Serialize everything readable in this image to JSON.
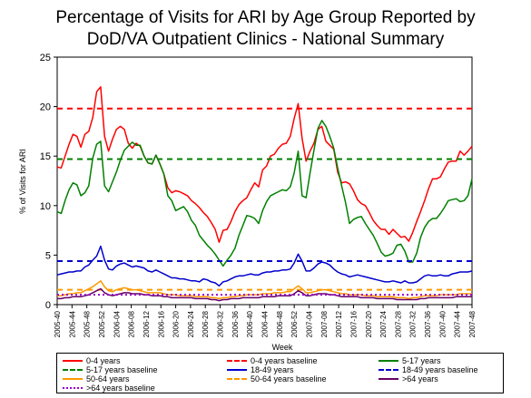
{
  "chart_data": {
    "type": "line",
    "title": "Percentage of Visits for ARI by Age Group Reported by DoD/VA Outpatient Clinics - National Summary",
    "title_lines": [
      "Percentage of Visits for ARI by Age Group Reported by",
      "DoD/VA Outpatient Clinics - National Summary"
    ],
    "xlabel": "Week",
    "ylabel": "% of Visits for ARI",
    "ylim": [
      0,
      25
    ],
    "yticks": [
      0,
      5,
      10,
      15,
      20,
      25
    ],
    "grid": false,
    "legend_position": "bottom",
    "x_tick_labels": [
      "2005-40",
      "2005-44",
      "2005-48",
      "2005-52",
      "2006-04",
      "2006-08",
      "2006-12",
      "2006-16",
      "2006-20",
      "2006-24",
      "2006-28",
      "2006-32",
      "2006-36",
      "2006-40",
      "2006-44",
      "2006-48",
      "2006-52",
      "2007-04",
      "2007-08",
      "2007-12",
      "2007-16",
      "2007-20",
      "2007-24",
      "2007-28",
      "2007-32",
      "2007-36",
      "2007-40",
      "2007-44",
      "2007-48"
    ],
    "series": [
      {
        "name": "0-4 years",
        "color": "#ff0000",
        "style": "solid",
        "values": [
          13.9,
          13.8,
          15.0,
          16.2,
          17.2,
          17.0,
          15.9,
          17.2,
          17.5,
          18.9,
          21.5,
          22.0,
          17.0,
          15.5,
          16.7,
          17.7,
          18.0,
          17.7,
          16.3,
          15.8,
          16.3,
          16.0,
          15.0,
          14.3,
          14.2,
          15.1,
          14.2,
          13.2,
          11.8,
          11.3,
          11.5,
          11.4,
          11.2,
          11.0,
          10.5,
          10.2,
          9.8,
          9.3,
          8.9,
          8.3,
          7.6,
          6.3,
          7.5,
          7.6,
          8.4,
          9.4,
          10.1,
          10.5,
          10.8,
          11.6,
          12.3,
          11.9,
          13.6,
          14.0,
          15.0,
          15.2,
          15.8,
          16.2,
          16.3,
          17.0,
          18.8,
          20.3,
          16.8,
          14.5,
          15.5,
          16.3,
          17.7,
          18.0,
          16.5,
          16.1,
          15.7,
          13.4,
          12.3,
          12.4,
          12.2,
          11.5,
          10.6,
          10.2,
          10.0,
          9.3,
          8.5,
          8.0,
          7.6,
          7.6,
          7.1,
          7.6,
          7.2,
          6.8,
          6.9,
          6.4,
          7.3,
          8.4,
          9.4,
          10.5,
          11.7,
          12.7,
          12.7,
          12.9,
          13.7,
          14.4,
          14.5,
          14.5,
          15.5,
          15.1,
          15.5,
          16.0
        ]
      },
      {
        "name": "0-4 years baseline",
        "color": "#ff0000",
        "style": "dashed",
        "constant": 19.8
      },
      {
        "name": "5-17 years",
        "color": "#008000",
        "style": "solid",
        "values": [
          9.4,
          9.2,
          10.5,
          11.6,
          12.3,
          12.1,
          11.0,
          11.3,
          12.0,
          14.8,
          16.2,
          16.5,
          12.0,
          11.4,
          12.4,
          13.4,
          14.6,
          15.6,
          16.0,
          16.4,
          16.1,
          16.1,
          15.0,
          14.3,
          14.2,
          15.1,
          14.2,
          13.2,
          11.0,
          10.5,
          9.5,
          9.7,
          9.9,
          9.4,
          8.5,
          8.0,
          7.0,
          6.5,
          6.0,
          5.6,
          5.1,
          4.5,
          3.9,
          4.5,
          5.0,
          5.7,
          7.0,
          8.0,
          9.0,
          8.9,
          8.7,
          8.2,
          9.5,
          10.4,
          11.0,
          11.2,
          11.4,
          11.6,
          11.5,
          11.9,
          13.3,
          15.5,
          11.0,
          10.8,
          13.3,
          15.6,
          17.8,
          18.6,
          18.0,
          17.0,
          15.8,
          13.8,
          12.0,
          10.3,
          8.2,
          8.6,
          8.8,
          8.9,
          8.2,
          7.6,
          7.0,
          6.2,
          5.3,
          4.9,
          5.0,
          5.2,
          6.0,
          6.1,
          5.4,
          4.3,
          4.3,
          5.2,
          6.8,
          7.8,
          8.4,
          8.7,
          8.7,
          9.2,
          9.8,
          10.5,
          10.6,
          10.7,
          10.4,
          10.5,
          11.0,
          12.7
        ]
      },
      {
        "name": "5-17 years baseline",
        "color": "#008000",
        "style": "dashed",
        "constant": 14.7
      },
      {
        "name": "18-49 years",
        "color": "#0000cc",
        "style": "solid",
        "values": [
          3.0,
          3.1,
          3.2,
          3.3,
          3.3,
          3.4,
          3.4,
          3.8,
          4.0,
          4.5,
          4.9,
          5.9,
          4.5,
          3.6,
          3.5,
          3.9,
          4.1,
          4.2,
          4.0,
          3.8,
          3.9,
          3.8,
          3.7,
          3.4,
          3.3,
          3.5,
          3.3,
          3.1,
          2.9,
          2.7,
          2.7,
          2.6,
          2.6,
          2.5,
          2.4,
          2.4,
          2.3,
          2.6,
          2.5,
          2.3,
          2.2,
          1.9,
          2.3,
          2.4,
          2.6,
          2.8,
          2.9,
          2.9,
          3.0,
          3.1,
          3.0,
          3.0,
          3.2,
          3.3,
          3.3,
          3.4,
          3.4,
          3.5,
          3.5,
          3.6,
          4.2,
          5.1,
          4.4,
          3.4,
          3.4,
          3.7,
          4.1,
          4.3,
          4.2,
          4.0,
          3.6,
          3.3,
          3.1,
          3.0,
          2.8,
          2.9,
          3.0,
          2.9,
          2.8,
          2.7,
          2.6,
          2.5,
          2.4,
          2.3,
          2.3,
          2.4,
          2.3,
          2.2,
          2.4,
          2.2,
          2.2,
          2.3,
          2.6,
          2.9,
          3.0,
          2.9,
          2.9,
          3.0,
          2.9,
          2.9,
          3.1,
          3.2,
          3.3,
          3.3,
          3.3,
          3.4
        ]
      },
      {
        "name": "18-49 years baseline",
        "color": "#0000cc",
        "style": "dashed",
        "constant": 4.4
      },
      {
        "name": "50-64 years",
        "color": "#ff9900",
        "style": "solid",
        "values": [
          0.9,
          0.9,
          1.0,
          1.1,
          1.1,
          1.2,
          1.2,
          1.4,
          1.6,
          1.8,
          2.1,
          2.4,
          1.8,
          1.4,
          1.3,
          1.5,
          1.6,
          1.7,
          1.6,
          1.5,
          1.5,
          1.4,
          1.3,
          1.2,
          1.2,
          1.2,
          1.2,
          1.1,
          1.0,
          1.0,
          1.0,
          0.9,
          0.9,
          0.9,
          0.9,
          0.8,
          0.8,
          0.8,
          0.8,
          0.7,
          0.7,
          0.6,
          0.7,
          0.7,
          0.8,
          0.8,
          0.9,
          0.9,
          1.0,
          1.0,
          1.0,
          1.0,
          1.1,
          1.1,
          1.1,
          1.2,
          1.2,
          1.2,
          1.3,
          1.3,
          1.6,
          1.9,
          1.6,
          1.2,
          1.2,
          1.3,
          1.4,
          1.5,
          1.5,
          1.4,
          1.3,
          1.2,
          1.1,
          1.1,
          1.0,
          1.0,
          1.0,
          1.0,
          0.9,
          0.9,
          0.9,
          0.8,
          0.8,
          0.8,
          0.8,
          0.8,
          0.7,
          0.7,
          0.7,
          0.6,
          0.7,
          0.7,
          0.8,
          0.9,
          0.9,
          0.9,
          0.9,
          1.0,
          1.0,
          1.0,
          1.0,
          1.0,
          1.1,
          1.1,
          1.1,
          1.1
        ]
      },
      {
        "name": "50-64 years baseline",
        "color": "#ff9900",
        "style": "dashed",
        "constant": 1.5
      },
      {
        "name": ">64 years",
        "color": "#660066",
        "style": "solid",
        "values": [
          0.6,
          0.6,
          0.7,
          0.7,
          0.8,
          0.8,
          0.8,
          0.9,
          1.0,
          1.2,
          1.4,
          1.6,
          1.2,
          1.0,
          0.9,
          1.0,
          1.1,
          1.2,
          1.2,
          1.1,
          1.1,
          1.1,
          1.0,
          1.0,
          0.9,
          0.9,
          0.9,
          0.8,
          0.8,
          0.7,
          0.7,
          0.7,
          0.7,
          0.7,
          0.7,
          0.6,
          0.6,
          0.6,
          0.6,
          0.5,
          0.5,
          0.4,
          0.5,
          0.5,
          0.6,
          0.6,
          0.6,
          0.7,
          0.7,
          0.7,
          0.7,
          0.7,
          0.8,
          0.8,
          0.8,
          0.8,
          0.9,
          0.9,
          0.9,
          0.9,
          1.1,
          1.4,
          1.2,
          0.9,
          0.9,
          1.0,
          1.1,
          1.1,
          1.1,
          1.0,
          1.0,
          0.9,
          0.8,
          0.8,
          0.8,
          0.8,
          0.8,
          0.7,
          0.7,
          0.7,
          0.7,
          0.6,
          0.6,
          0.6,
          0.6,
          0.6,
          0.5,
          0.5,
          0.5,
          0.5,
          0.5,
          0.5,
          0.6,
          0.6,
          0.7,
          0.7,
          0.7,
          0.7,
          0.7,
          0.7,
          0.7,
          0.8,
          0.8,
          0.8,
          0.8,
          0.8
        ]
      },
      {
        "name": ">64 years baseline",
        "color": "#9900cc",
        "style": "dotted",
        "constant": 1.0
      }
    ]
  }
}
